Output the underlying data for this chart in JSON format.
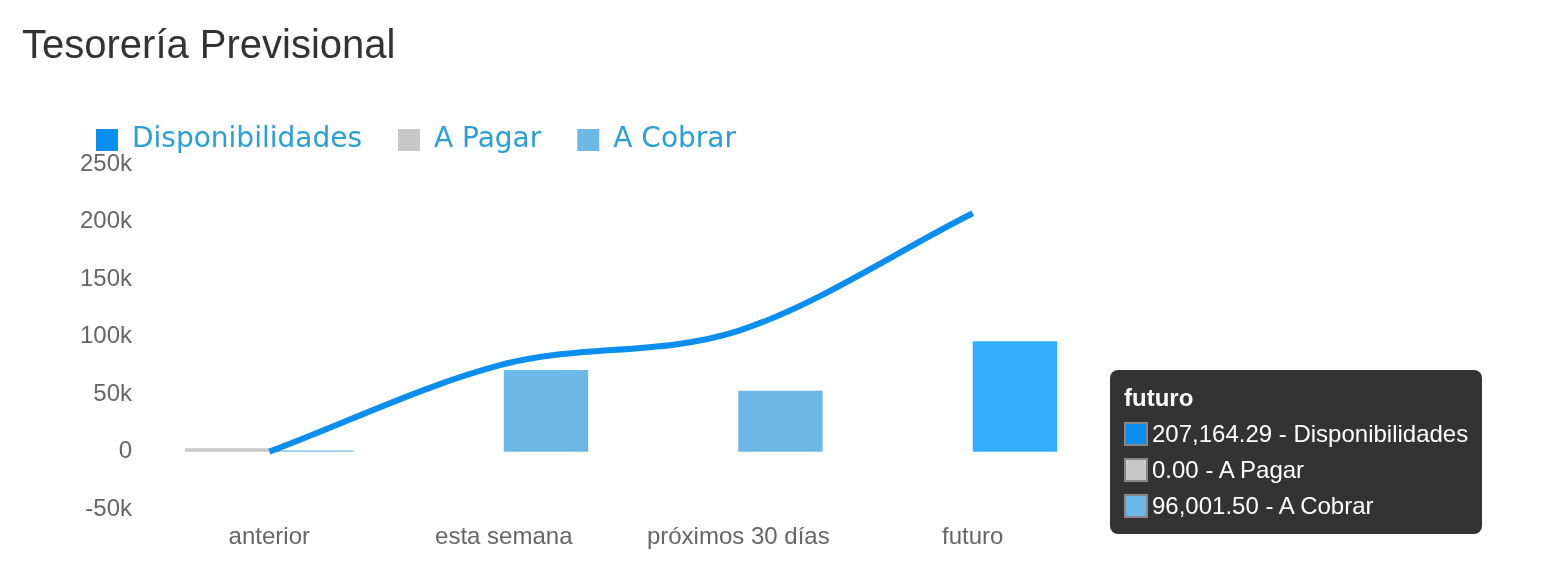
{
  "chart_data": {
    "type": "bar",
    "title": "Tesorería Previsional",
    "categories": [
      "anterior",
      "esta semana",
      "próximos 30 días",
      "futuro"
    ],
    "series": [
      {
        "name": "Disponibilidades",
        "type": "line",
        "color": "#0a8ff0",
        "values": [
          0,
          76000,
          105000,
          207164.29
        ]
      },
      {
        "name": "A Pagar",
        "color": "#c8c8c8",
        "values": [
          3000,
          0,
          0,
          0
        ]
      },
      {
        "name": "A Cobrar",
        "color": "#6cb8e6",
        "colors": [
          "#6cb8e6",
          "#6cb8e6",
          "#6cb8e6",
          "#33adff"
        ],
        "values": [
          1000,
          71000,
          53000,
          96001.5
        ]
      }
    ],
    "ylim": [
      -50000,
      250000
    ],
    "yticks": [
      {
        "value": -50000,
        "label": "-50k"
      },
      {
        "value": 0,
        "label": "0"
      },
      {
        "value": 50000,
        "label": "50k"
      },
      {
        "value": 100000,
        "label": "100k"
      },
      {
        "value": 150000,
        "label": "150k"
      },
      {
        "value": 200000,
        "label": "200k"
      },
      {
        "value": 250000,
        "label": "250k"
      }
    ],
    "grid": false,
    "legend": "top left",
    "annotations": [
      "futuro",
      "207,164.29 - Disponibilidades",
      "0.00 - A Pagar",
      "96,001.50 - A Cobrar"
    ]
  }
}
